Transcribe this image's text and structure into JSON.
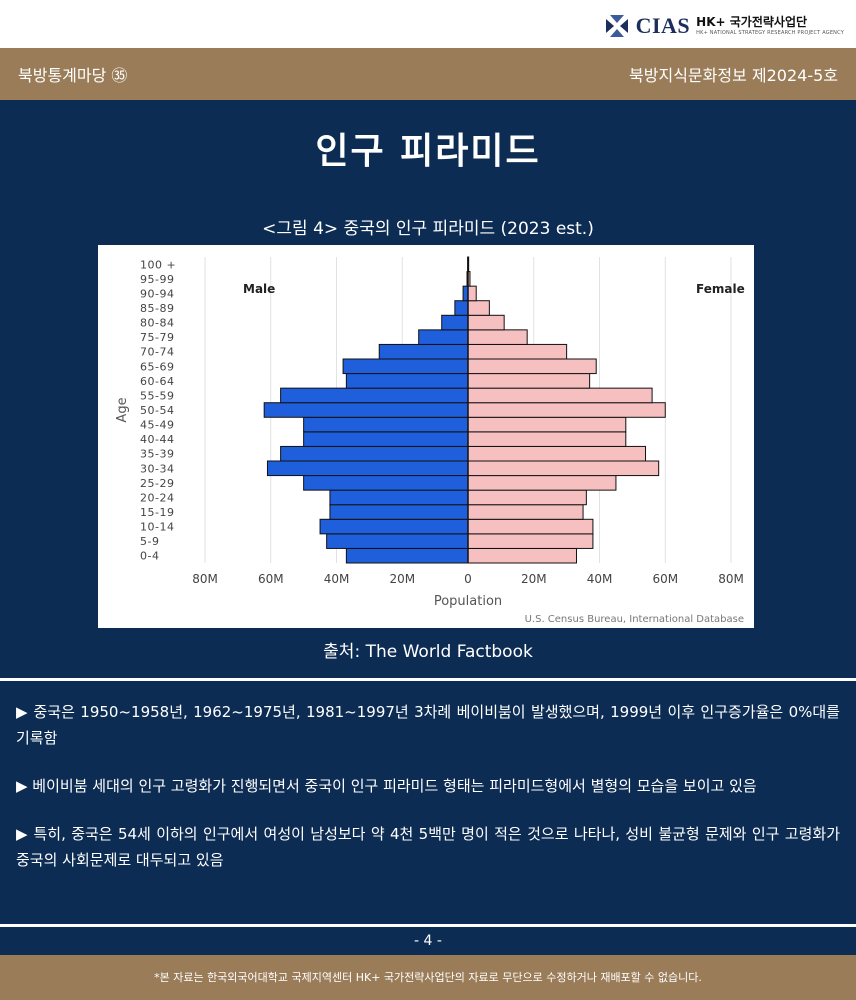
{
  "logo": {
    "name": "CIAS",
    "org": "HK+ 국가전략사업단",
    "sub": "HK+ NATIONAL STRATEGY RESEARCH PROJECT AGENCY"
  },
  "header": {
    "left": "북방통계마당 ㉟",
    "right": "북방지식문화정보 제2024-5호"
  },
  "page_title": "인구 피라미드",
  "figure_caption": "<그림 4> 중국의 인구 피라미드 (2023 est.)",
  "source": "출처: The World Factbook",
  "colors": {
    "male": "#1f5fdb",
    "female": "#f7c0c0",
    "panel": "#0d2c53",
    "band": "#9a7d58"
  },
  "chart_data": {
    "type": "bar",
    "orientation": "horizontal-pyramid",
    "categories": [
      "0-4",
      "5-9",
      "10-14",
      "15-19",
      "20-24",
      "25-29",
      "30-34",
      "35-39",
      "40-44",
      "45-49",
      "50-54",
      "55-59",
      "60-64",
      "65-69",
      "70-74",
      "75-79",
      "80-84",
      "85-89",
      "90-94",
      "95-99",
      "100 +"
    ],
    "series": [
      {
        "name": "Male",
        "values": [
          37,
          43,
          45,
          42,
          42,
          50,
          61,
          57,
          50,
          50,
          62,
          57,
          37,
          38,
          27,
          15,
          8,
          4,
          1.5,
          0.3,
          0.1
        ]
      },
      {
        "name": "Female",
        "values": [
          33,
          38,
          38,
          35,
          36,
          45,
          58,
          54,
          48,
          48,
          60,
          56,
          37,
          39,
          30,
          18,
          11,
          6.5,
          2.5,
          0.6,
          0.2
        ]
      }
    ],
    "xlabel": "Population",
    "ylabel": "Age",
    "xlim": [
      -80,
      80
    ],
    "xticks": [
      "80M",
      "60M",
      "40M",
      "20M",
      "0",
      "20M",
      "40M",
      "60M",
      "80M"
    ],
    "grid": true,
    "credit": "U.S. Census Bureau, International Database"
  },
  "bullets": [
    "▶ 중국은 1950~1958년, 1962~1975년, 1981~1997년 3차례 베이비붐이 발생했으며, 1999년 이후 인구증가율은 0%대를 기록함",
    "▶ 베이비붐 세대의 인구 고령화가 진행되면서 중국이 인구 피라미드 형태는 피라미드형에서 별형의 모습을 보이고 있음",
    "▶ 특히, 중국은 54세 이하의 인구에서 여성이 남성보다 약 4천 5백만 명이 적은 것으로 나타나, 성비 불균형 문제와 인구 고령화가 중국의 사회문제로 대두되고 있음"
  ],
  "page_number": "- 4 -",
  "footer": "*본 자료는 한국외국어대학교 국제지역센터 HK+ 국가전략사업단의 자료로 무단으로 수정하거나 재배포할 수 없습니다."
}
